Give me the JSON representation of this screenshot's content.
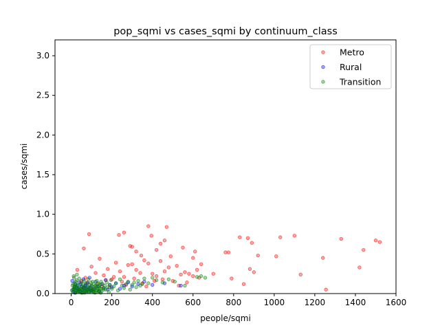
{
  "chart_data": {
    "type": "scatter",
    "title": "pop_sqmi vs cases_sqmi by continuum_class",
    "xlabel": "people/sqmi",
    "ylabel": "cases/sqmi",
    "xlim": [
      -80,
      1600
    ],
    "ylim": [
      0,
      3.2
    ],
    "xticks": [
      0,
      200,
      400,
      600,
      800,
      1000,
      1200,
      1400,
      1600
    ],
    "yticks": [
      0.0,
      0.5,
      1.0,
      1.5,
      2.0,
      2.5,
      3.0
    ],
    "xtick_labels": [
      "0",
      "200",
      "400",
      "600",
      "800",
      "1000",
      "1200",
      "1400",
      "1600"
    ],
    "ytick_labels": [
      "0.0",
      "0.5",
      "1.0",
      "1.5",
      "2.0",
      "2.5",
      "3.0"
    ],
    "grid": false,
    "legend_position": "top-right",
    "series": [
      {
        "name": "Metro",
        "color": "#ff0000",
        "x": [
          88,
          62,
          260,
          380,
          470,
          235,
          290,
          300,
          320,
          345,
          395,
          420,
          440,
          460,
          490,
          550,
          600,
          610,
          760,
          775,
          830,
          870,
          890,
          920,
          1010,
          1030,
          1100,
          1130,
          1240,
          1255,
          1330,
          1420,
          1440,
          1500,
          1520,
          30,
          50,
          70,
          100,
          120,
          140,
          160,
          180,
          200,
          220,
          240,
          260,
          280,
          300,
          320,
          340,
          360,
          380,
          400,
          420,
          440,
          460,
          480,
          500,
          520,
          540,
          560,
          580,
          600,
          620,
          640,
          700,
          790,
          850,
          880,
          900,
          60,
          80,
          110,
          130,
          150,
          170,
          190,
          210,
          250,
          270,
          310,
          350,
          370,
          410,
          450,
          530,
          570,
          630
        ],
        "y": [
          0.75,
          0.57,
          0.77,
          0.85,
          0.84,
          0.74,
          0.6,
          0.59,
          0.53,
          0.48,
          0.73,
          0.55,
          0.63,
          0.67,
          0.47,
          0.58,
          0.45,
          0.53,
          0.52,
          0.52,
          0.71,
          0.7,
          0.64,
          0.48,
          0.47,
          0.71,
          0.73,
          0.24,
          0.45,
          0.05,
          0.69,
          0.33,
          0.55,
          0.67,
          0.65,
          0.3,
          0.16,
          0.2,
          0.34,
          0.26,
          0.44,
          0.23,
          0.31,
          0.18,
          0.39,
          0.28,
          0.21,
          0.36,
          0.37,
          0.3,
          0.26,
          0.42,
          0.38,
          0.25,
          0.22,
          0.41,
          0.28,
          0.33,
          0.16,
          0.35,
          0.24,
          0.27,
          0.25,
          0.22,
          0.3,
          0.37,
          0.25,
          0.19,
          0.12,
          0.31,
          0.27,
          0.07,
          0.14,
          0.05,
          0.12,
          0.09,
          0.17,
          0.08,
          0.21,
          0.15,
          0.11,
          0.19,
          0.13,
          0.09,
          0.16,
          0.18,
          0.1,
          0.14,
          0.2
        ]
      },
      {
        "name": "Rural",
        "color": "#0000ff",
        "x": [
          5,
          10,
          15,
          20,
          25,
          30,
          35,
          40,
          45,
          50,
          55,
          60,
          65,
          70,
          75,
          80,
          85,
          90,
          95,
          100,
          110,
          120,
          130,
          140,
          150,
          160,
          170,
          180,
          190,
          200,
          220,
          240,
          260,
          280,
          300,
          330,
          360,
          400,
          460,
          540,
          8,
          18,
          28,
          38,
          48,
          58,
          68,
          78,
          88,
          98
        ],
        "y": [
          0.16,
          0.02,
          0.08,
          0.12,
          0.04,
          0.1,
          0.06,
          0.14,
          0.03,
          0.09,
          0.05,
          0.18,
          0.07,
          0.11,
          0.02,
          0.13,
          0.08,
          0.2,
          0.04,
          0.1,
          0.06,
          0.15,
          0.09,
          0.03,
          0.12,
          0.07,
          0.17,
          0.05,
          0.11,
          0.08,
          0.13,
          0.06,
          0.1,
          0.14,
          0.09,
          0.12,
          0.15,
          0.11,
          0.13,
          0.1,
          0.05,
          0.01,
          0.07,
          0.03,
          0.12,
          0.02,
          0.09,
          0.04,
          0.06,
          0.03
        ]
      },
      {
        "name": "Transition",
        "color": "#008000",
        "x": [
          3,
          6,
          9,
          12,
          15,
          18,
          21,
          24,
          27,
          30,
          33,
          36,
          39,
          42,
          45,
          48,
          51,
          54,
          57,
          60,
          63,
          66,
          69,
          72,
          75,
          78,
          81,
          84,
          87,
          90,
          93,
          96,
          99,
          102,
          105,
          108,
          111,
          114,
          117,
          120,
          123,
          126,
          129,
          132,
          135,
          138,
          141,
          144,
          147,
          150,
          155,
          160,
          165,
          170,
          175,
          180,
          185,
          190,
          195,
          200,
          210,
          220,
          230,
          240,
          250,
          260,
          270,
          280,
          290,
          300,
          310,
          320,
          330,
          340,
          350,
          360,
          380,
          400,
          420,
          450,
          480,
          510,
          560,
          620,
          640,
          660,
          20,
          40,
          60,
          80,
          100,
          120,
          140,
          160,
          30,
          50,
          70,
          90,
          110,
          130,
          15,
          35,
          55,
          75,
          95,
          115,
          135,
          25,
          45,
          65,
          85,
          105,
          125,
          145,
          10,
          12,
          14,
          16,
          22,
          28
        ],
        "y": [
          0.04,
          0.1,
          0.02,
          0.22,
          0.06,
          0.13,
          0.01,
          0.08,
          0.17,
          0.03,
          0.11,
          0.05,
          0.19,
          0.07,
          0.02,
          0.14,
          0.09,
          0.04,
          0.12,
          0.06,
          0.16,
          0.01,
          0.1,
          0.03,
          0.13,
          0.08,
          0.05,
          0.18,
          0.02,
          0.11,
          0.07,
          0.14,
          0.04,
          0.09,
          0.15,
          0.03,
          0.12,
          0.06,
          0.01,
          0.1,
          0.08,
          0.16,
          0.04,
          0.13,
          0.02,
          0.09,
          0.11,
          0.06,
          0.15,
          0.03,
          0.12,
          0.07,
          0.1,
          0.05,
          0.14,
          0.08,
          0.02,
          0.11,
          0.17,
          0.06,
          0.09,
          0.13,
          0.04,
          0.18,
          0.1,
          0.07,
          0.12,
          0.15,
          0.05,
          0.11,
          0.14,
          0.08,
          0.16,
          0.1,
          0.12,
          0.19,
          0.13,
          0.2,
          0.17,
          0.14,
          0.18,
          0.15,
          0.1,
          0.21,
          0.22,
          0.2,
          0.03,
          0.05,
          0.08,
          0.06,
          0.04,
          0.09,
          0.07,
          0.05,
          0.02,
          0.01,
          0.04,
          0.03,
          0.02,
          0.06,
          0.07,
          0.04,
          0.01,
          0.05,
          0.08,
          0.02,
          0.03,
          0.09,
          0.06,
          0.03,
          0.02,
          0.05,
          0.04,
          0.01,
          0.12,
          0.05,
          0.2,
          0.09,
          0.15,
          0.24
        ]
      }
    ]
  }
}
